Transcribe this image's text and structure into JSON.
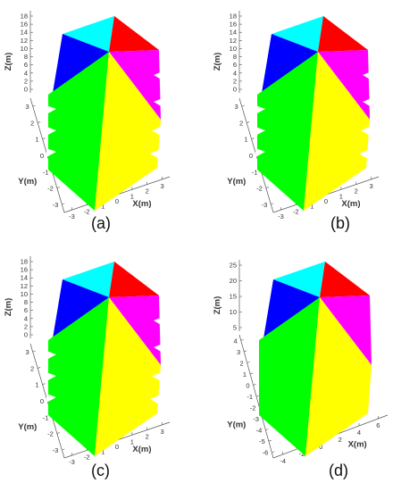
{
  "colors": {
    "cyan": "#00ffff",
    "red": "#ff0000",
    "blue": "#0000ff",
    "magenta": "#ff00ff",
    "green": "#00ff00",
    "yellow": "#ffff00"
  },
  "panels": [
    {
      "caption": "(a)",
      "z_label": "Z(m)",
      "y_label": "Y(m)",
      "x_label": "X(m)",
      "z_ticks": [
        "18",
        "16",
        "14",
        "12",
        "10",
        "8",
        "6",
        "4",
        "2",
        "0"
      ],
      "y_ticks": [
        "3",
        "2",
        "1",
        "0",
        "-1",
        "-2",
        "-3"
      ],
      "x_ticks": [
        "-3",
        "-2",
        "-1",
        "0",
        "1",
        "2",
        "3"
      ]
    },
    {
      "caption": "(b)",
      "z_label": "Z(m)",
      "y_label": "Y(m)",
      "x_label": "X(m)",
      "z_ticks": [
        "18",
        "16",
        "14",
        "12",
        "10",
        "8",
        "6",
        "4",
        "2",
        "0"
      ],
      "y_ticks": [
        "3",
        "2",
        "1",
        "0",
        "-1",
        "-2",
        "-3"
      ],
      "x_ticks": [
        "-3",
        "-2",
        "-1",
        "0",
        "1",
        "2",
        "3"
      ]
    },
    {
      "caption": "(c)",
      "z_label": "Z(m)",
      "y_label": "Y(m)",
      "x_label": "X(m)",
      "z_ticks": [
        "18",
        "16",
        "14",
        "12",
        "10",
        "8",
        "6",
        "4",
        "2",
        "0"
      ],
      "y_ticks": [
        "3",
        "2",
        "1",
        "0",
        "-1",
        "-2",
        "-3"
      ],
      "x_ticks": [
        "-3",
        "-2",
        "-1",
        "0",
        "1",
        "2",
        "3"
      ]
    },
    {
      "caption": "(d)",
      "z_label": "Z(m)",
      "y_label": "Y(m)",
      "x_label": "X(m)",
      "z_ticks": [
        "25",
        "20",
        "15",
        "10",
        "5"
      ],
      "y_ticks": [
        "4",
        "3",
        "2",
        "1",
        "0",
        "-1",
        "-2",
        "-3",
        "-4",
        "-5",
        "-6"
      ],
      "x_ticks": [
        "-4",
        "-2",
        "0",
        "2",
        "4",
        "6"
      ]
    }
  ]
}
